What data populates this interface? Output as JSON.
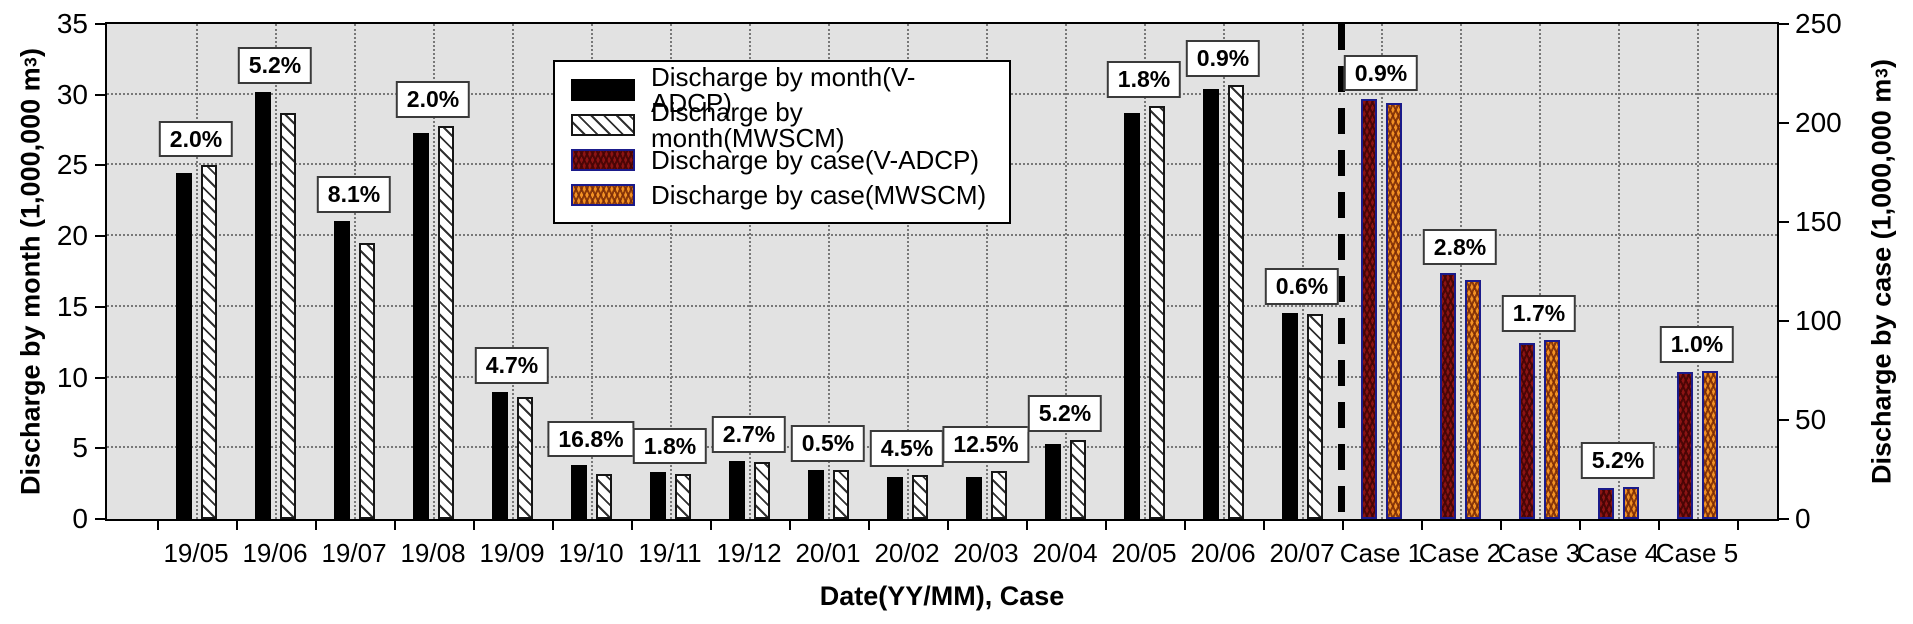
{
  "chart_data": {
    "type": "bar",
    "x_title": "Date(YY/MM), Case",
    "left_axis": {
      "title_prefix": "Discharge by month (1,000,000 m",
      "title_sup": "3",
      "title_suffix": ")",
      "min": 0,
      "max": 35,
      "ticks": [
        0,
        5,
        10,
        15,
        20,
        25,
        30,
        35
      ]
    },
    "right_axis": {
      "title_prefix": "Discharge by case (1,000,000 m",
      "title_sup": "3",
      "title_suffix": ")",
      "min": 0,
      "max": 250,
      "ticks": [
        0,
        50,
        100,
        150,
        200,
        250
      ]
    },
    "grid": "dotted",
    "separator_after_category": "20/07",
    "legend_position": "top-center-inside",
    "legend": [
      {
        "label": "Discharge by month(V-ADCP)",
        "swatch": "solid-black"
      },
      {
        "label": "Discharge by month(MWSCM)",
        "swatch": "white-hatch"
      },
      {
        "label": "Discharge by case(V-ADCP)",
        "swatch": "maroon-weave"
      },
      {
        "label": "Discharge by case(MWSCM)",
        "swatch": "orange-weave"
      }
    ],
    "series_note": "v_adcp is left bar, mwscm is right bar; month groups use left axis, case groups use right axis; diff_label is the boxed percent difference above each pair",
    "groups": [
      {
        "type": "month",
        "category": "19/05",
        "diff_label": "2.0%",
        "v_adcp": 24.5,
        "mwscm": 25.0
      },
      {
        "type": "month",
        "category": "19/06",
        "diff_label": "5.2%",
        "v_adcp": 30.2,
        "mwscm": 28.7
      },
      {
        "type": "month",
        "category": "19/07",
        "diff_label": "8.1%",
        "v_adcp": 21.1,
        "mwscm": 19.5
      },
      {
        "type": "month",
        "category": "19/08",
        "diff_label": "2.0%",
        "v_adcp": 27.3,
        "mwscm": 27.8
      },
      {
        "type": "month",
        "category": "19/09",
        "diff_label": "4.7%",
        "v_adcp": 9.0,
        "mwscm": 8.6
      },
      {
        "type": "month",
        "category": "19/10",
        "diff_label": "16.8%",
        "v_adcp": 3.8,
        "mwscm": 3.2
      },
      {
        "type": "month",
        "category": "19/11",
        "diff_label": "1.8%",
        "v_adcp": 3.3,
        "mwscm": 3.2
      },
      {
        "type": "month",
        "category": "19/12",
        "diff_label": "2.7%",
        "v_adcp": 4.1,
        "mwscm": 4.0
      },
      {
        "type": "month",
        "category": "20/01",
        "diff_label": "0.5%",
        "v_adcp": 3.5,
        "mwscm": 3.5
      },
      {
        "type": "month",
        "category": "20/02",
        "diff_label": "4.5%",
        "v_adcp": 3.0,
        "mwscm": 3.1
      },
      {
        "type": "month",
        "category": "20/03",
        "diff_label": "12.5%",
        "v_adcp": 3.0,
        "mwscm": 3.4
      },
      {
        "type": "month",
        "category": "20/04",
        "diff_label": "5.2%",
        "v_adcp": 5.3,
        "mwscm": 5.6
      },
      {
        "type": "month",
        "category": "20/05",
        "diff_label": "1.8%",
        "v_adcp": 28.7,
        "mwscm": 29.2
      },
      {
        "type": "month",
        "category": "20/06",
        "diff_label": "0.9%",
        "v_adcp": 30.4,
        "mwscm": 30.7
      },
      {
        "type": "month",
        "category": "20/07",
        "diff_label": "0.6%",
        "v_adcp": 14.6,
        "mwscm": 14.5
      },
      {
        "type": "case",
        "category": "Case 1",
        "diff_label": "0.9%",
        "v_adcp": 212.0,
        "mwscm": 210.0
      },
      {
        "type": "case",
        "category": "Case 2",
        "diff_label": "2.8%",
        "v_adcp": 124.0,
        "mwscm": 120.5
      },
      {
        "type": "case",
        "category": "Case 3",
        "diff_label": "1.7%",
        "v_adcp": 89.0,
        "mwscm": 90.5
      },
      {
        "type": "case",
        "category": "Case 4",
        "diff_label": "5.2%",
        "v_adcp": 15.5,
        "mwscm": 16.3
      },
      {
        "type": "case",
        "category": "Case 5",
        "diff_label": "1.0%",
        "v_adcp": 74.0,
        "mwscm": 74.7
      }
    ],
    "colors": {
      "month_v_adcp": "#000000",
      "month_mwscm_bg": "#ffffff",
      "month_mwscm_hatch": "#303030",
      "case_v_adcp": "#8c1414",
      "case_mwscm": "#f29124",
      "case_border": "#1b1b8a",
      "plot_background": "#e2e2e2",
      "gridline": "#787878",
      "separator": "#000000"
    }
  }
}
